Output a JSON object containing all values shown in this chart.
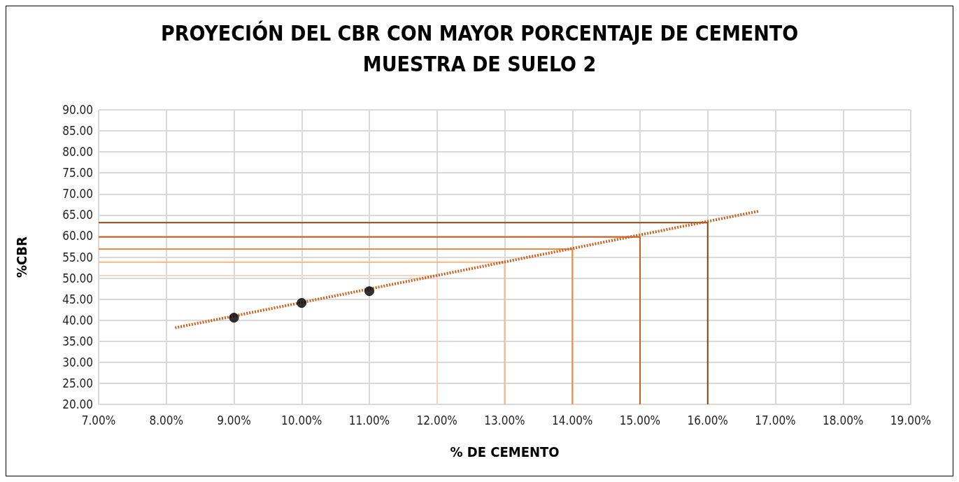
{
  "chart_data": {
    "type": "scatter",
    "title": "PROYECIÓN DEL CBR CON MAYOR PORCENTAJE DE CEMENTO",
    "subtitle": "MUESTRA DE SUELO 2",
    "xlabel": "% DE CEMENTO",
    "ylabel": "%CBR",
    "xlim": [
      7,
      19
    ],
    "ylim": [
      20,
      90
    ],
    "xticks": [
      {
        "value": 7,
        "label": "7.00%"
      },
      {
        "value": 8,
        "label": "8.00%"
      },
      {
        "value": 9,
        "label": "9.00%"
      },
      {
        "value": 10,
        "label": "10.00%"
      },
      {
        "value": 11,
        "label": "11.00%"
      },
      {
        "value": 12,
        "label": "12.00%"
      },
      {
        "value": 13,
        "label": "13.00%"
      },
      {
        "value": 14,
        "label": "14.00%"
      },
      {
        "value": 15,
        "label": "15.00%"
      },
      {
        "value": 16,
        "label": "16.00%"
      },
      {
        "value": 17,
        "label": "17.00%"
      },
      {
        "value": 18,
        "label": "18.00%"
      },
      {
        "value": 19,
        "label": "19.00%"
      }
    ],
    "yticks": [
      {
        "value": 20,
        "label": "20.00"
      },
      {
        "value": 25,
        "label": "25.00"
      },
      {
        "value": 30,
        "label": "30.00"
      },
      {
        "value": 35,
        "label": "35.00"
      },
      {
        "value": 40,
        "label": "40.00"
      },
      {
        "value": 45,
        "label": "45.00"
      },
      {
        "value": 50,
        "label": "50.00"
      },
      {
        "value": 55,
        "label": "55.00"
      },
      {
        "value": 60,
        "label": "60.00"
      },
      {
        "value": 65,
        "label": "65.00"
      },
      {
        "value": 70,
        "label": "70.00"
      },
      {
        "value": 75,
        "label": "75.00"
      },
      {
        "value": 80,
        "label": "80.00"
      },
      {
        "value": 85,
        "label": "85.00"
      },
      {
        "value": 90,
        "label": "90.00"
      }
    ],
    "grid": true,
    "series": [
      {
        "type": "line",
        "color": "#fbd5b8",
        "line_style": "solid",
        "marker": "none",
        "x": [
          7,
          12,
          12
        ],
        "values": [
          50.6,
          50.6,
          20
        ]
      },
      {
        "type": "line",
        "color": "#f6b587",
        "line_style": "solid",
        "marker": "none",
        "x": [
          7,
          13,
          13
        ],
        "values": [
          53.8,
          53.8,
          20
        ]
      },
      {
        "type": "line",
        "color": "#ef8a44",
        "line_style": "solid",
        "marker": "none",
        "x": [
          7,
          14,
          14
        ],
        "values": [
          56.9,
          56.9,
          20
        ]
      },
      {
        "type": "line",
        "color": "#c9601e",
        "line_style": "solid",
        "marker": "none",
        "x": [
          7,
          15,
          15
        ],
        "values": [
          59.8,
          59.8,
          20
        ]
      },
      {
        "type": "line",
        "color": "#8a4512",
        "line_style": "solid",
        "marker": "none",
        "x": [
          7,
          16,
          16
        ],
        "values": [
          63.2,
          63.2,
          20
        ]
      },
      {
        "type": "line",
        "color": "#c9601e",
        "line_style": "dotted",
        "marker": "none",
        "x": [
          8.13,
          16.75
        ],
        "values": [
          38.2,
          65.9
        ]
      },
      {
        "color": "#000000",
        "marker": "circle",
        "x": [
          9,
          10,
          11
        ],
        "values": [
          40.6,
          44.1,
          46.9
        ]
      }
    ]
  }
}
